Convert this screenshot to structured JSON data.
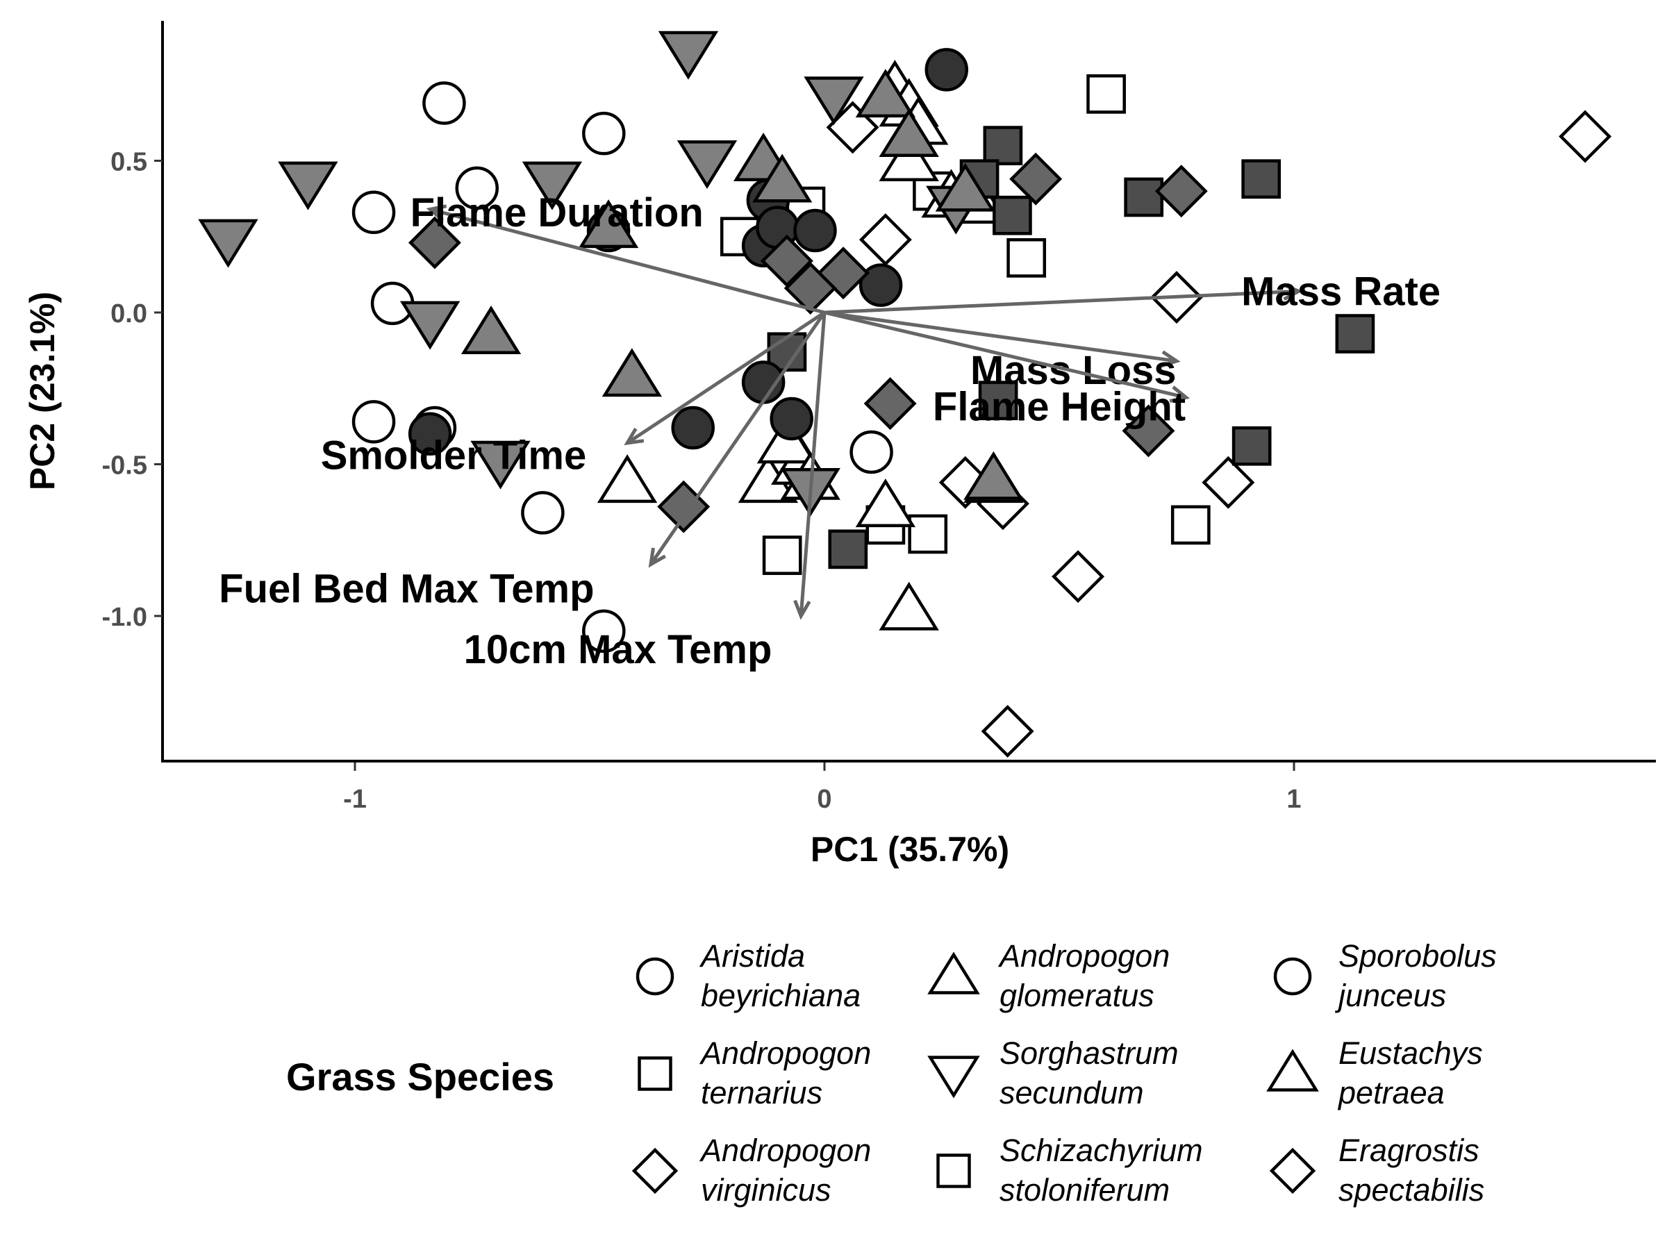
{
  "chart_data": {
    "type": "scatter",
    "title": "",
    "xlabel": "PC1 (35.7%)",
    "ylabel": "PC2 (23.1%)",
    "xlim": [
      -1.41,
      1.76
    ],
    "ylim": [
      -1.48,
      0.96
    ],
    "xticks": [
      -1,
      0,
      1
    ],
    "yticks": [
      0.5,
      0.0,
      -0.5,
      -1.0
    ],
    "xtick_labels": [
      "-1",
      "0",
      "1"
    ],
    "ytick_labels": [
      "0.5",
      "0.0",
      "-0.5",
      "-1.0"
    ],
    "grid": false,
    "legend": {
      "title": "Grass Species",
      "position": "bottom"
    },
    "loadings": [
      {
        "name": "Flame Duration",
        "x": -0.84,
        "y": 0.34,
        "label_x": -0.57,
        "label_y": 0.33
      },
      {
        "name": "Mass Rate",
        "x": 1.01,
        "y": 0.07,
        "label_x": 1.1,
        "label_y": 0.07
      },
      {
        "name": "Mass Loss",
        "x": 0.75,
        "y": -0.16,
        "label_x": 0.53,
        "label_y": -0.19
      },
      {
        "name": "Flame Height",
        "x": 0.77,
        "y": -0.28,
        "label_x": 0.5,
        "label_y": -0.31
      },
      {
        "name": "Smolder Time",
        "x": -0.42,
        "y": -0.43,
        "label_x": -0.79,
        "label_y": -0.47
      },
      {
        "name": "Fuel Bed Max Temp",
        "x": -0.37,
        "y": -0.83,
        "label_x": -0.89,
        "label_y": -0.91
      },
      {
        "name": "10cm Max Temp",
        "x": -0.05,
        "y": -1.0,
        "label_x": -0.44,
        "label_y": -1.11
      }
    ],
    "series": [
      {
        "name": "Aristida beyrichiana",
        "line1": "Aristida",
        "line2": "beyrichiana",
        "shape": "circle",
        "fill": "#ffffff",
        "points": [
          [
            -0.81,
            0.69
          ],
          [
            -0.47,
            0.59
          ],
          [
            -0.74,
            0.41
          ],
          [
            -0.96,
            0.33
          ],
          [
            -0.92,
            0.03
          ],
          [
            -0.96,
            -0.36
          ],
          [
            -0.83,
            -0.38
          ],
          [
            -0.6,
            -0.66
          ],
          [
            -0.47,
            -1.05
          ],
          [
            0.1,
            -0.46
          ]
        ]
      },
      {
        "name": "Andropogon ternarius",
        "line1": "Andropogon",
        "line2": "ternarius",
        "shape": "square",
        "fill": "#ffffff",
        "points": [
          [
            0.6,
            0.72
          ],
          [
            0.23,
            0.4
          ],
          [
            -0.18,
            0.25
          ],
          [
            -0.04,
            0.35
          ],
          [
            0.43,
            0.18
          ],
          [
            0.13,
            -0.7
          ],
          [
            0.22,
            -0.73
          ],
          [
            -0.09,
            -0.8
          ],
          [
            0.78,
            -0.7
          ]
        ]
      },
      {
        "name": "Andropogon virginicus",
        "line1": "Andropogon",
        "line2": "virginicus",
        "shape": "diamond",
        "fill": "#ffffff",
        "points": [
          [
            0.06,
            0.61
          ],
          [
            0.13,
            0.24
          ],
          [
            0.75,
            0.05
          ],
          [
            0.3,
            -0.56
          ],
          [
            0.38,
            -0.63
          ],
          [
            0.54,
            -0.87
          ],
          [
            0.86,
            -0.56
          ],
          [
            0.39,
            -1.38
          ],
          [
            1.62,
            0.58
          ]
        ]
      },
      {
        "name": "Andropogon glomeratus",
        "line1": "Andropogon",
        "line2": "glomeratus",
        "shape": "triangle-up",
        "fill": "#ffffff",
        "points": [
          [
            0.15,
            0.74
          ],
          [
            0.18,
            0.68
          ],
          [
            0.2,
            0.62
          ],
          [
            0.18,
            0.5
          ],
          [
            0.27,
            0.38
          ],
          [
            0.33,
            0.36
          ],
          [
            -0.42,
            -0.56
          ],
          [
            -0.12,
            -0.56
          ],
          [
            -0.05,
            -0.5
          ],
          [
            -0.08,
            -0.43
          ],
          [
            -0.03,
            -0.55
          ],
          [
            0.13,
            -0.64
          ],
          [
            0.18,
            -0.98
          ],
          [
            0.36,
            -0.56
          ]
        ]
      },
      {
        "name": "Sorghastrum secundum",
        "line1": "Sorghastrum",
        "line2": "secundum",
        "shape": "triangle-down",
        "fill": "#808080",
        "points": [
          [
            -0.29,
            0.86
          ],
          [
            -1.1,
            0.43
          ],
          [
            -0.58,
            0.43
          ],
          [
            -1.27,
            0.24
          ],
          [
            -0.84,
            -0.03
          ],
          [
            -0.25,
            0.5
          ],
          [
            0.02,
            0.71
          ],
          [
            -0.69,
            -0.49
          ],
          [
            -0.03,
            -0.58
          ],
          [
            0.28,
            0.35
          ]
        ]
      },
      {
        "name": "Schizachyrium stoloniferum",
        "line1": "Schizachyrium",
        "line2": "stoloniferum",
        "shape": "square",
        "fill": "#4d4d4d",
        "points": [
          [
            0.38,
            0.55
          ],
          [
            0.33,
            0.44
          ],
          [
            0.4,
            0.32
          ],
          [
            0.68,
            0.38
          ],
          [
            0.93,
            0.44
          ],
          [
            1.13,
            -0.07
          ],
          [
            0.37,
            -0.29
          ],
          [
            0.91,
            -0.44
          ],
          [
            0.05,
            -0.78
          ],
          [
            -0.08,
            -0.13
          ]
        ]
      },
      {
        "name": "Sporobolus junceus",
        "line1": "Sporobolus",
        "line2": "junceus",
        "shape": "circle",
        "fill": "#333333",
        "points": [
          [
            0.26,
            0.8
          ],
          [
            -0.12,
            0.37
          ],
          [
            -0.13,
            0.22
          ],
          [
            -0.1,
            0.28
          ],
          [
            -0.02,
            0.27
          ],
          [
            -0.46,
            0.27
          ],
          [
            0.12,
            0.09
          ],
          [
            -0.13,
            -0.23
          ],
          [
            -0.07,
            -0.35
          ],
          [
            -0.28,
            -0.38
          ],
          [
            -0.84,
            -0.4
          ]
        ]
      },
      {
        "name": "Eustachys petraea",
        "line1": "Eustachys",
        "line2": "petraea",
        "shape": "triangle-up",
        "fill": "#808080",
        "points": [
          [
            -0.13,
            0.5
          ],
          [
            -0.09,
            0.43
          ],
          [
            0.13,
            0.71
          ],
          [
            0.18,
            0.58
          ],
          [
            0.3,
            0.4
          ],
          [
            -0.46,
            0.28
          ],
          [
            -0.71,
            -0.07
          ],
          [
            -0.41,
            -0.21
          ],
          [
            0.36,
            -0.55
          ]
        ]
      },
      {
        "name": "Eragrostis spectabilis",
        "line1": "Eragrostis",
        "line2": "spectabilis",
        "shape": "diamond",
        "fill": "#666666",
        "points": [
          [
            -0.83,
            0.23
          ],
          [
            -0.08,
            0.17
          ],
          [
            0.04,
            0.13
          ],
          [
            -0.03,
            0.08
          ],
          [
            0.45,
            0.44
          ],
          [
            0.76,
            0.4
          ],
          [
            0.14,
            -0.3
          ],
          [
            0.69,
            -0.39
          ],
          [
            -0.3,
            -0.64
          ]
        ]
      }
    ]
  }
}
